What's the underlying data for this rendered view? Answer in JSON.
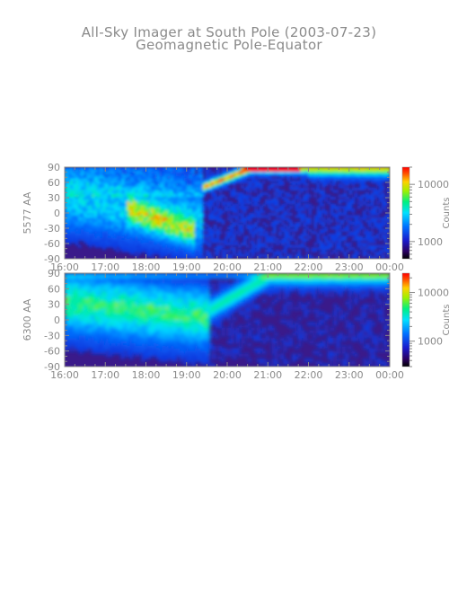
{
  "title": "All-Sky Imager at South Pole (2003-07-23)",
  "subtitle": "Geomagnetic Pole-Equator",
  "chart_data": [
    {
      "type": "heatmap",
      "ylabel": "5577 AA",
      "x_ticks": [
        "16:00",
        "17:00",
        "18:00",
        "19:00",
        "20:00",
        "21:00",
        "22:00",
        "23:00",
        "00:00"
      ],
      "y_ticks": [
        90,
        60,
        30,
        0,
        -30,
        -60,
        -90
      ],
      "ylim": [
        -90,
        90
      ],
      "colorbar": {
        "label": "Counts",
        "ticks": [
          10000,
          1000
        ],
        "tick_labels": [
          "10000",
          "1000"
        ],
        "range": [
          500,
          20000
        ]
      }
    },
    {
      "type": "heatmap",
      "ylabel": "6300 AA",
      "x_ticks": [
        "16:00",
        "17:00",
        "18:00",
        "19:00",
        "20:00",
        "21:00",
        "22:00",
        "23:00",
        "00:00"
      ],
      "y_ticks": [
        90,
        60,
        30,
        0,
        -30,
        -60,
        -90
      ],
      "ylim": [
        -90,
        90
      ],
      "colorbar": {
        "label": "Counts",
        "ticks": [
          10000,
          1000
        ],
        "tick_labels": [
          "10000",
          "1000"
        ],
        "range": [
          300,
          25000
        ]
      }
    }
  ]
}
